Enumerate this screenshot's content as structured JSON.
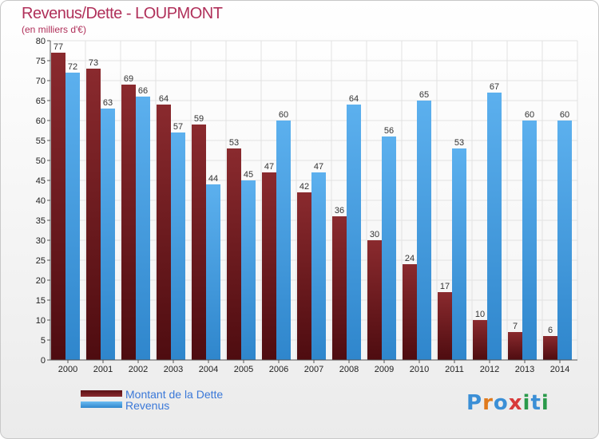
{
  "title": "Revenus/Dette - LOUPMONT",
  "subtitle": "(en milliers d'€)",
  "logo_text": "Proxiti",
  "colors": {
    "title": "#b0305a",
    "dette": "#7a1f24",
    "revenus": "#3d9be0",
    "grid": "#e2e2e2"
  },
  "chart_data": {
    "type": "bar",
    "title": "Revenus/Dette - LOUPMONT",
    "subtitle": "(en milliers d'€)",
    "categories": [
      "2000",
      "2001",
      "2002",
      "2003",
      "2004",
      "2005",
      "2006",
      "2007",
      "2008",
      "2009",
      "2010",
      "2011",
      "2012",
      "2013",
      "2014"
    ],
    "series": [
      {
        "name": "Montant de la Dette",
        "values": [
          77,
          73,
          69,
          64,
          59,
          53,
          47,
          42,
          36,
          30,
          24,
          17,
          10,
          7,
          6
        ]
      },
      {
        "name": "Revenus",
        "values": [
          72,
          63,
          66,
          57,
          44,
          45,
          60,
          47,
          64,
          56,
          65,
          53,
          67,
          60,
          60
        ]
      }
    ],
    "ylim": [
      0,
      80
    ],
    "yticks": [
      0,
      5,
      10,
      15,
      20,
      25,
      30,
      35,
      40,
      45,
      50,
      55,
      60,
      65,
      70,
      75,
      80
    ],
    "grid": true,
    "legend": "bottom-left"
  }
}
